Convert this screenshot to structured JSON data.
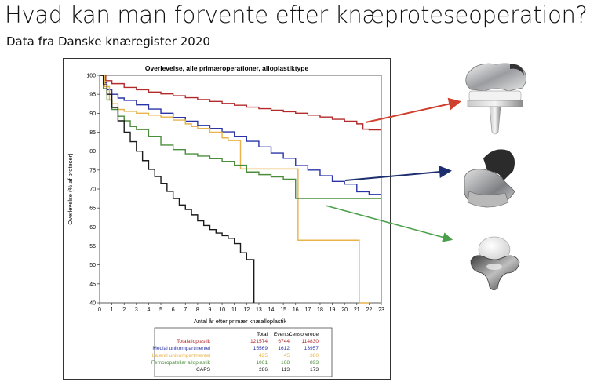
{
  "slide": {
    "title": "Hvad kan man forvente efter knæproteseoperation?",
    "subtitle": "Data fra Danske knæregister 2020"
  },
  "chart_data": {
    "type": "line",
    "title": "Overlevelse, alle primæroperationer, alloplastiktype",
    "xlabel": "Antal år efter primær knæalloplastik",
    "ylabel": "Overlevelse (% af proteser)",
    "xlim": [
      0,
      23
    ],
    "ylim": [
      40,
      100
    ],
    "xticks": [
      0,
      1,
      2,
      3,
      4,
      5,
      6,
      7,
      8,
      9,
      10,
      11,
      12,
      13,
      14,
      15,
      16,
      17,
      18,
      19,
      20,
      21,
      22,
      23
    ],
    "yticks": [
      40,
      45,
      50,
      55,
      60,
      65,
      70,
      75,
      80,
      85,
      90,
      95,
      100
    ],
    "grid": false,
    "series": [
      {
        "name": "Totalalloplastik",
        "color": "#b22a2a",
        "x": [
          0,
          0.5,
          1,
          2,
          3,
          4,
          5,
          6,
          7,
          8,
          9,
          10,
          11,
          12,
          13,
          14,
          15,
          16,
          17,
          18,
          19,
          20,
          21,
          21.5,
          22,
          23
        ],
        "y": [
          100,
          98.6,
          97.8,
          96.8,
          96.2,
          95.6,
          95.1,
          94.6,
          94.1,
          93.6,
          93.1,
          92.6,
          92.1,
          91.6,
          91.2,
          90.8,
          90.4,
          90,
          89.5,
          89,
          88.4,
          87.9,
          87.2,
          85.8,
          85.6,
          85.6
        ]
      },
      {
        "name": "Medial unikompartmentel",
        "color": "#2a34a8",
        "x": [
          0,
          0.3,
          0.6,
          1,
          1.5,
          2,
          3,
          4,
          5,
          6,
          7,
          8,
          9,
          10,
          11,
          12,
          13,
          14,
          15,
          16,
          17,
          18,
          19,
          20,
          21,
          22,
          23
        ],
        "y": [
          100,
          98,
          96.2,
          95,
          94,
          93.4,
          92.2,
          91.1,
          90,
          88.9,
          87.9,
          86.8,
          86,
          85.1,
          83.8,
          82.6,
          81.1,
          79.5,
          78.1,
          76.2,
          75,
          73.5,
          72,
          71.3,
          69.3,
          68.6,
          68.6
        ]
      },
      {
        "name": "Lateral unikompartmentel",
        "color": "#e8b34a",
        "x": [
          0,
          0.4,
          0.8,
          1,
          1.5,
          2,
          3,
          4,
          5,
          6,
          7,
          7.5,
          8,
          9,
          10,
          10.5,
          11,
          11.5,
          12,
          13,
          14,
          15,
          16,
          16.2,
          17,
          18,
          19,
          20,
          21,
          21.2,
          22
        ],
        "y": [
          100,
          97,
          93.5,
          92.5,
          91,
          90.5,
          90,
          89.5,
          89,
          88.2,
          87.2,
          86.5,
          86,
          85,
          83.5,
          82.8,
          82.8,
          75.3,
          75.3,
          75.3,
          75.3,
          75.3,
          75.3,
          56.5,
          56.5,
          56.5,
          56.5,
          56.5,
          56.5,
          40,
          40
        ]
      },
      {
        "name": "Femoropatellar alloplastik",
        "color": "#4a8d3a",
        "x": [
          0,
          0.3,
          0.6,
          1,
          1.5,
          2,
          2.5,
          3,
          4,
          5,
          6,
          7,
          8,
          9,
          10,
          11,
          12,
          13,
          14,
          15,
          16,
          17,
          18,
          19,
          20,
          21,
          22,
          23
        ],
        "y": [
          100,
          96.5,
          93.5,
          91,
          89.2,
          88,
          86.5,
          85.7,
          83.8,
          81.6,
          80.4,
          79.3,
          78.7,
          78,
          77.3,
          76.3,
          74.5,
          73.8,
          73.2,
          72.6,
          67.5,
          67.5,
          67.5,
          67.5,
          67.5,
          67.5,
          67.5,
          67.5
        ]
      },
      {
        "name": "CAPS",
        "color": "#1a1a1a",
        "x": [
          0,
          0.3,
          0.6,
          1,
          1.5,
          2,
          2.5,
          3,
          3.5,
          4,
          4.5,
          5,
          5.5,
          6,
          6.5,
          7,
          7.5,
          8,
          8.5,
          9,
          9.5,
          10,
          10.5,
          11,
          11.5,
          12,
          12.2,
          12.6,
          12.6
        ],
        "y": [
          100,
          97.5,
          95,
          91.5,
          88,
          85,
          82.5,
          80,
          77.5,
          75.2,
          73.3,
          71.5,
          69.4,
          67.5,
          65.8,
          64.6,
          63.2,
          61.6,
          60.4,
          59.3,
          58.4,
          57.7,
          57,
          55.6,
          53.2,
          51.4,
          51.4,
          51.4,
          40
        ]
      }
    ],
    "table": {
      "headers": [
        "",
        "Total",
        "Events",
        "Censorerede"
      ],
      "rows": [
        [
          "Totalalloplastik",
          "121574",
          "6744",
          "114830"
        ],
        [
          "Medial unikompartmentel",
          "15569",
          "1612",
          "13957"
        ],
        [
          "Lateral unikompartmentel",
          "425",
          "45",
          "380"
        ],
        [
          "Femoropatellar alloplastik",
          "1061",
          "168",
          "893"
        ],
        [
          "CAPS",
          "286",
          "113",
          "173"
        ]
      ]
    }
  },
  "implants": [
    {
      "icon": "total-knee-implant-icon",
      "arrow_color": "#d0402e"
    },
    {
      "icon": "unicompartmental-knee-implant-icon",
      "arrow_color": "#1c2e6e"
    },
    {
      "icon": "patellofemoral-implant-icon",
      "arrow_color": "#4aa04a"
    }
  ]
}
